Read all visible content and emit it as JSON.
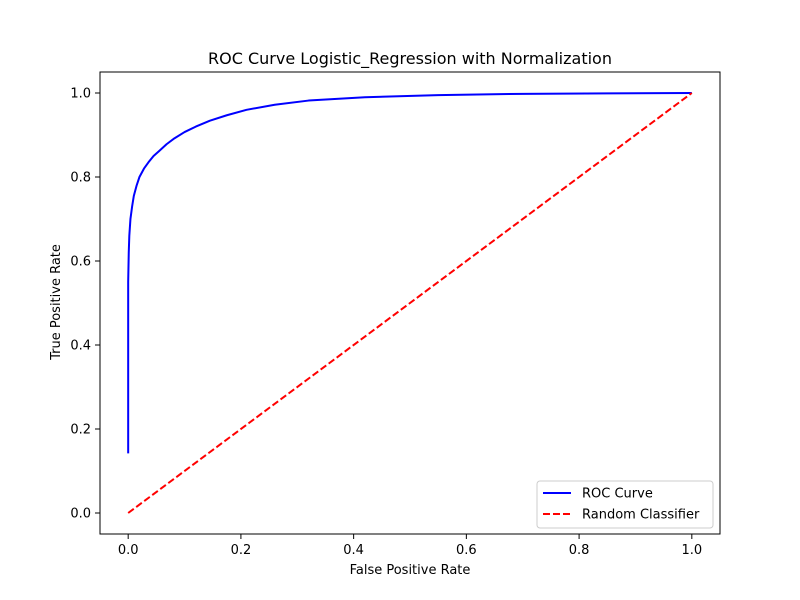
{
  "chart_data": {
    "type": "line",
    "title": "ROC Curve Logistic_Regression with Normalization",
    "xlabel": "False Positive Rate",
    "ylabel": "True Positive Rate",
    "xlim": [
      -0.05,
      1.05
    ],
    "ylim": [
      -0.05,
      1.05
    ],
    "xticks": [
      0.0,
      0.2,
      0.4,
      0.6,
      0.8,
      1.0
    ],
    "xtick_labels": [
      "0.0",
      "0.2",
      "0.4",
      "0.6",
      "0.8",
      "1.0"
    ],
    "yticks": [
      0.0,
      0.2,
      0.4,
      0.6,
      0.8,
      1.0
    ],
    "ytick_labels": [
      "0.0",
      "0.2",
      "0.4",
      "0.6",
      "0.8",
      "1.0"
    ],
    "grid": false,
    "legend_position": "lower-right",
    "series": [
      {
        "name": "ROC Curve",
        "color": "#0000ff",
        "style": "solid",
        "x": [
          0.0,
          0.0,
          0.0,
          0.001,
          0.002,
          0.004,
          0.007,
          0.01,
          0.015,
          0.02,
          0.028,
          0.036,
          0.045,
          0.055,
          0.068,
          0.082,
          0.1,
          0.12,
          0.145,
          0.175,
          0.21,
          0.26,
          0.32,
          0.42,
          0.55,
          0.7,
          0.85,
          1.0
        ],
        "y": [
          0.142,
          0.4,
          0.55,
          0.62,
          0.66,
          0.7,
          0.73,
          0.755,
          0.78,
          0.8,
          0.82,
          0.835,
          0.85,
          0.862,
          0.878,
          0.892,
          0.907,
          0.92,
          0.934,
          0.947,
          0.96,
          0.972,
          0.982,
          0.99,
          0.995,
          0.998,
          0.999,
          1.0
        ]
      },
      {
        "name": "Random Classifier",
        "color": "#ff0000",
        "style": "dashed",
        "x": [
          0.0,
          1.0
        ],
        "y": [
          0.0,
          1.0
        ]
      }
    ]
  }
}
